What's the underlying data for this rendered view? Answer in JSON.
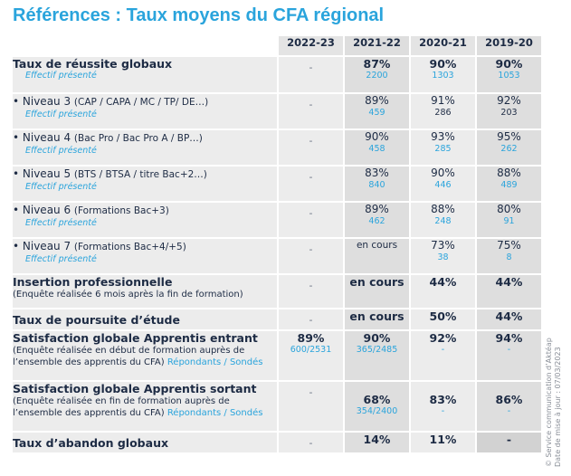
{
  "title": "Références : Taux moyens du CFA régional",
  "years": [
    "2022-23",
    "2021-22",
    "2020-21",
    "2019-20"
  ],
  "rows": [
    {
      "main": "Taux de réussite globaux",
      "sub": "Effectif présenté",
      "vals": [
        {
          "v": "-",
          "s": ""
        },
        {
          "v": "87%",
          "s": "2200"
        },
        {
          "v": "90%",
          "s": "1303"
        },
        {
          "v": "90%",
          "s": "1053"
        }
      ]
    },
    {
      "main": "• Niveau 3 ",
      "paren": "(CAP / CAPA / MC / TP/ DE…)",
      "sub": "Effectif présenté",
      "vals": [
        {
          "v": "-",
          "s": ""
        },
        {
          "v": "89%",
          "s": "459"
        },
        {
          "v": "91%",
          "s": "286"
        },
        {
          "v": "92%",
          "s": "203"
        }
      ]
    },
    {
      "main": "• Niveau 4 ",
      "paren": "(Bac Pro / Bac Pro A / BP…)",
      "sub": "Effectif présenté",
      "vals": [
        {
          "v": "-",
          "s": ""
        },
        {
          "v": "90%",
          "s": "458"
        },
        {
          "v": "93%",
          "s": "285"
        },
        {
          "v": "95%",
          "s": "262"
        }
      ]
    },
    {
      "main": "• Niveau 5 ",
      "paren": "(BTS / BTSA / titre Bac+2…)",
      "sub": "Effectif présenté",
      "vals": [
        {
          "v": "-",
          "s": ""
        },
        {
          "v": "83%",
          "s": "840"
        },
        {
          "v": "90%",
          "s": "446"
        },
        {
          "v": "88%",
          "s": "489"
        }
      ]
    },
    {
      "main": "• Niveau 6 ",
      "paren": "(Formations Bac+3)",
      "sub": "Effectif présenté",
      "vals": [
        {
          "v": "-",
          "s": ""
        },
        {
          "v": "89%",
          "s": "462"
        },
        {
          "v": "88%",
          "s": "248"
        },
        {
          "v": "80%",
          "s": "91"
        }
      ]
    },
    {
      "main": "• Niveau 7 ",
      "paren": "(Formations Bac+4/+5)",
      "sub": "Effectif présenté",
      "vals": [
        {
          "v": "-",
          "s": ""
        },
        {
          "v": "en cours",
          "s": ""
        },
        {
          "v": "73%",
          "s": "38"
        },
        {
          "v": "75%",
          "s": "8"
        }
      ]
    },
    {
      "main": "Insertion professionnelle",
      "note": "(Enquête réalisée 6 mois après la fin de formation)",
      "vals": [
        {
          "v": "-"
        },
        {
          "v": "en cours"
        },
        {
          "v": "44%"
        },
        {
          "v": "44%"
        }
      ]
    },
    {
      "main": "Taux de poursuite d’étude",
      "vals": [
        {
          "v": "-"
        },
        {
          "v": "en cours"
        },
        {
          "v": "50%"
        },
        {
          "v": "44%"
        }
      ]
    },
    {
      "main": "Satisfaction globale Apprentis entrant",
      "note": "(Enquête réalisée en début de formation auprès de l’ensemble des apprentis du CFA)",
      "note_blue": "Répondants / Sondés",
      "vals": [
        {
          "v": "89%",
          "s": "600/2531"
        },
        {
          "v": "90%",
          "s": "365/2485"
        },
        {
          "v": "92%",
          "s": "-"
        },
        {
          "v": "94%",
          "s": "-"
        }
      ]
    },
    {
      "main": "Satisfaction globale Apprentis sortant",
      "note": "(Enquête réalisée en fin de formation auprès de l’ensemble des apprentis du CFA)",
      "note_blue": "Répondants / Sondés",
      "vals": [
        {
          "v": "-",
          "s": ""
        },
        {
          "v": "68%",
          "s": "354/2400"
        },
        {
          "v": "83%",
          "s": "-"
        },
        {
          "v": "86%",
          "s": "-"
        }
      ]
    },
    {
      "main": "Taux d’abandon globaux",
      "vals": [
        {
          "v": "-"
        },
        {
          "v": "14%"
        },
        {
          "v": "11%"
        },
        {
          "v": "-"
        }
      ]
    }
  ],
  "side_text": {
    "line1": "© Service communication d’Aktéap",
    "line2": "Date de mise à jour : 07/03/2023"
  }
}
